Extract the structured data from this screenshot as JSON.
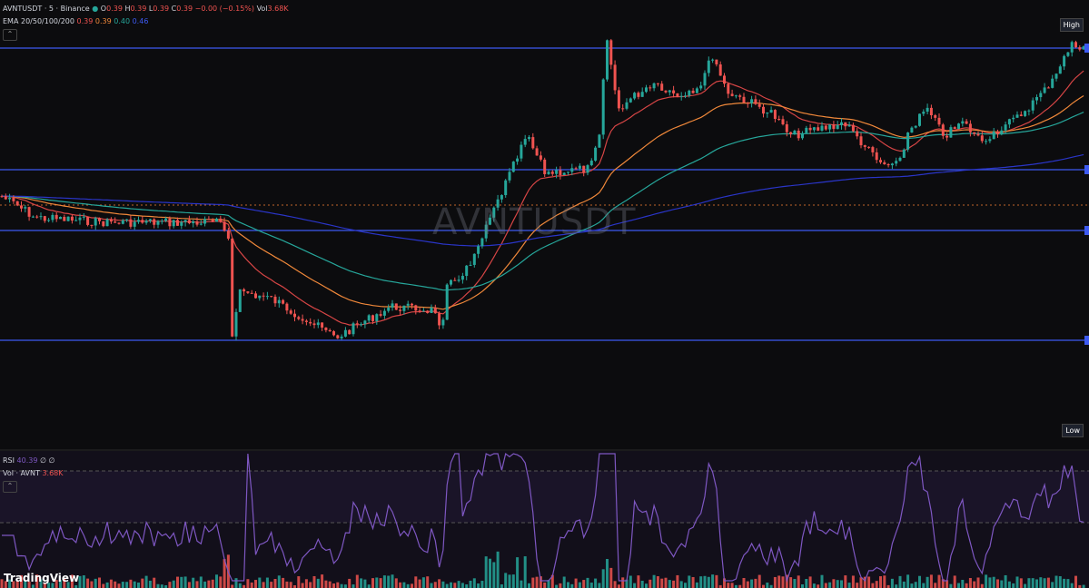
{
  "header": {
    "symbol": "AVNTUSDT · 5 · Binance",
    "ohlc": [
      {
        "label": "O",
        "value": "0.39"
      },
      {
        "label": "H",
        "value": "0.39"
      },
      {
        "label": "L",
        "value": "0.39"
      },
      {
        "label": "C",
        "value": "0.39"
      }
    ],
    "change": "−0.00 (−0.15%)",
    "volume": {
      "label": "Vol",
      "value": "3.68K"
    }
  },
  "ema": {
    "label": "EMA 20/50/100/200",
    "values": [
      "0.39",
      "0.39",
      "0.40",
      "0.46"
    ]
  },
  "watermark": "AVNTUSDT",
  "markers": {
    "high": "High",
    "low": "Low"
  },
  "rsi": {
    "label": "RSI",
    "value": "40.39",
    "extras": [
      "∅",
      "∅"
    ]
  },
  "volume_pane": {
    "label": "Vol · AVNT",
    "value": "3.68K"
  },
  "logo": "TradingView"
}
